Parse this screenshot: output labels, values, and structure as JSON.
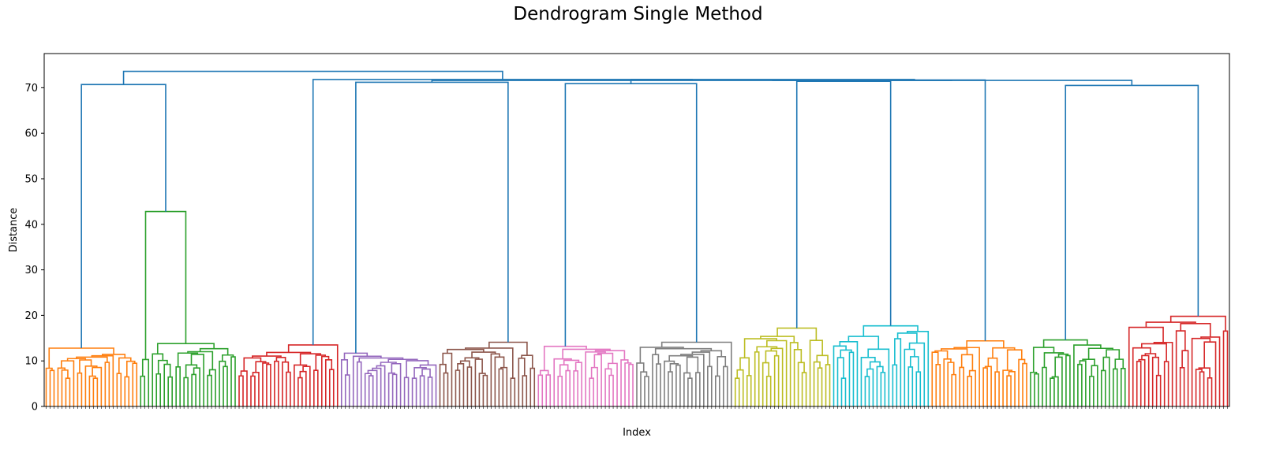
{
  "chart_data": {
    "type": "dendrogram",
    "title": "Dendrogram Single Method",
    "xlabel": "Index",
    "ylabel": "Distance",
    "ylim": [
      0,
      77.5
    ],
    "yticks": [
      0,
      10,
      20,
      30,
      40,
      50,
      60,
      70
    ],
    "grid": false,
    "legend": "none",
    "colors": {
      "above_threshold": "#1f77b4",
      "clusters": [
        "#ff7f0e",
        "#2ca02c",
        "#d62728",
        "#9467bd",
        "#8c564b",
        "#e377c2",
        "#7f7f7f",
        "#bcbd22",
        "#17becf",
        "#ff7f0e",
        "#2ca02c",
        "#d62728"
      ]
    },
    "clusters": [
      {
        "color": "#ff7f0e",
        "leaves": 24,
        "merge_height": 12.8
      },
      {
        "color": "#2ca02c",
        "leaves": 25,
        "merge_height": 42.8,
        "sub_height": 13.8
      },
      {
        "color": "#d62728",
        "leaves": 26,
        "merge_height": 13.5
      },
      {
        "color": "#9467bd",
        "leaves": 25,
        "merge_height": 11.7
      },
      {
        "color": "#8c564b",
        "leaves": 25,
        "merge_height": 14.1
      },
      {
        "color": "#e377c2",
        "leaves": 25,
        "merge_height": 13.2
      },
      {
        "color": "#7f7f7f",
        "leaves": 25,
        "merge_height": 14.1
      },
      {
        "color": "#bcbd22",
        "leaves": 25,
        "merge_height": 17.2
      },
      {
        "color": "#17becf",
        "leaves": 25,
        "merge_height": 17.7
      },
      {
        "color": "#ff7f0e",
        "leaves": 25,
        "merge_height": 14.4
      },
      {
        "color": "#2ca02c",
        "leaves": 25,
        "merge_height": 14.6
      },
      {
        "color": "#d62728",
        "leaves": 26,
        "merge_height": 19.8
      }
    ],
    "upper_links": [
      {
        "children": [
          0,
          1
        ],
        "height": 70.7
      },
      {
        "children": [
          3,
          4
        ],
        "height": 71.2
      },
      {
        "children": [
          5,
          6
        ],
        "height": 70.9
      },
      {
        "children": [
          7,
          8
        ],
        "height": 71.4
      },
      {
        "children": [
          10,
          11
        ],
        "height": 70.5
      },
      {
        "children": [
          "n_7_8",
          9
        ],
        "height": 71.7
      },
      {
        "children": [
          "n_5_6",
          "n_7_8_9"
        ],
        "height": 71.8
      },
      {
        "children": [
          "n_5_9",
          "n_10_11"
        ],
        "height": 71.6
      },
      {
        "children": [
          "n_3_4",
          "n_5_11"
        ],
        "height": 71.6
      },
      {
        "children": [
          2,
          "n_3_11"
        ],
        "height": 71.8
      },
      {
        "children": [
          "n_0_1",
          "n_2_11"
        ],
        "height": 73.6
      }
    ]
  }
}
